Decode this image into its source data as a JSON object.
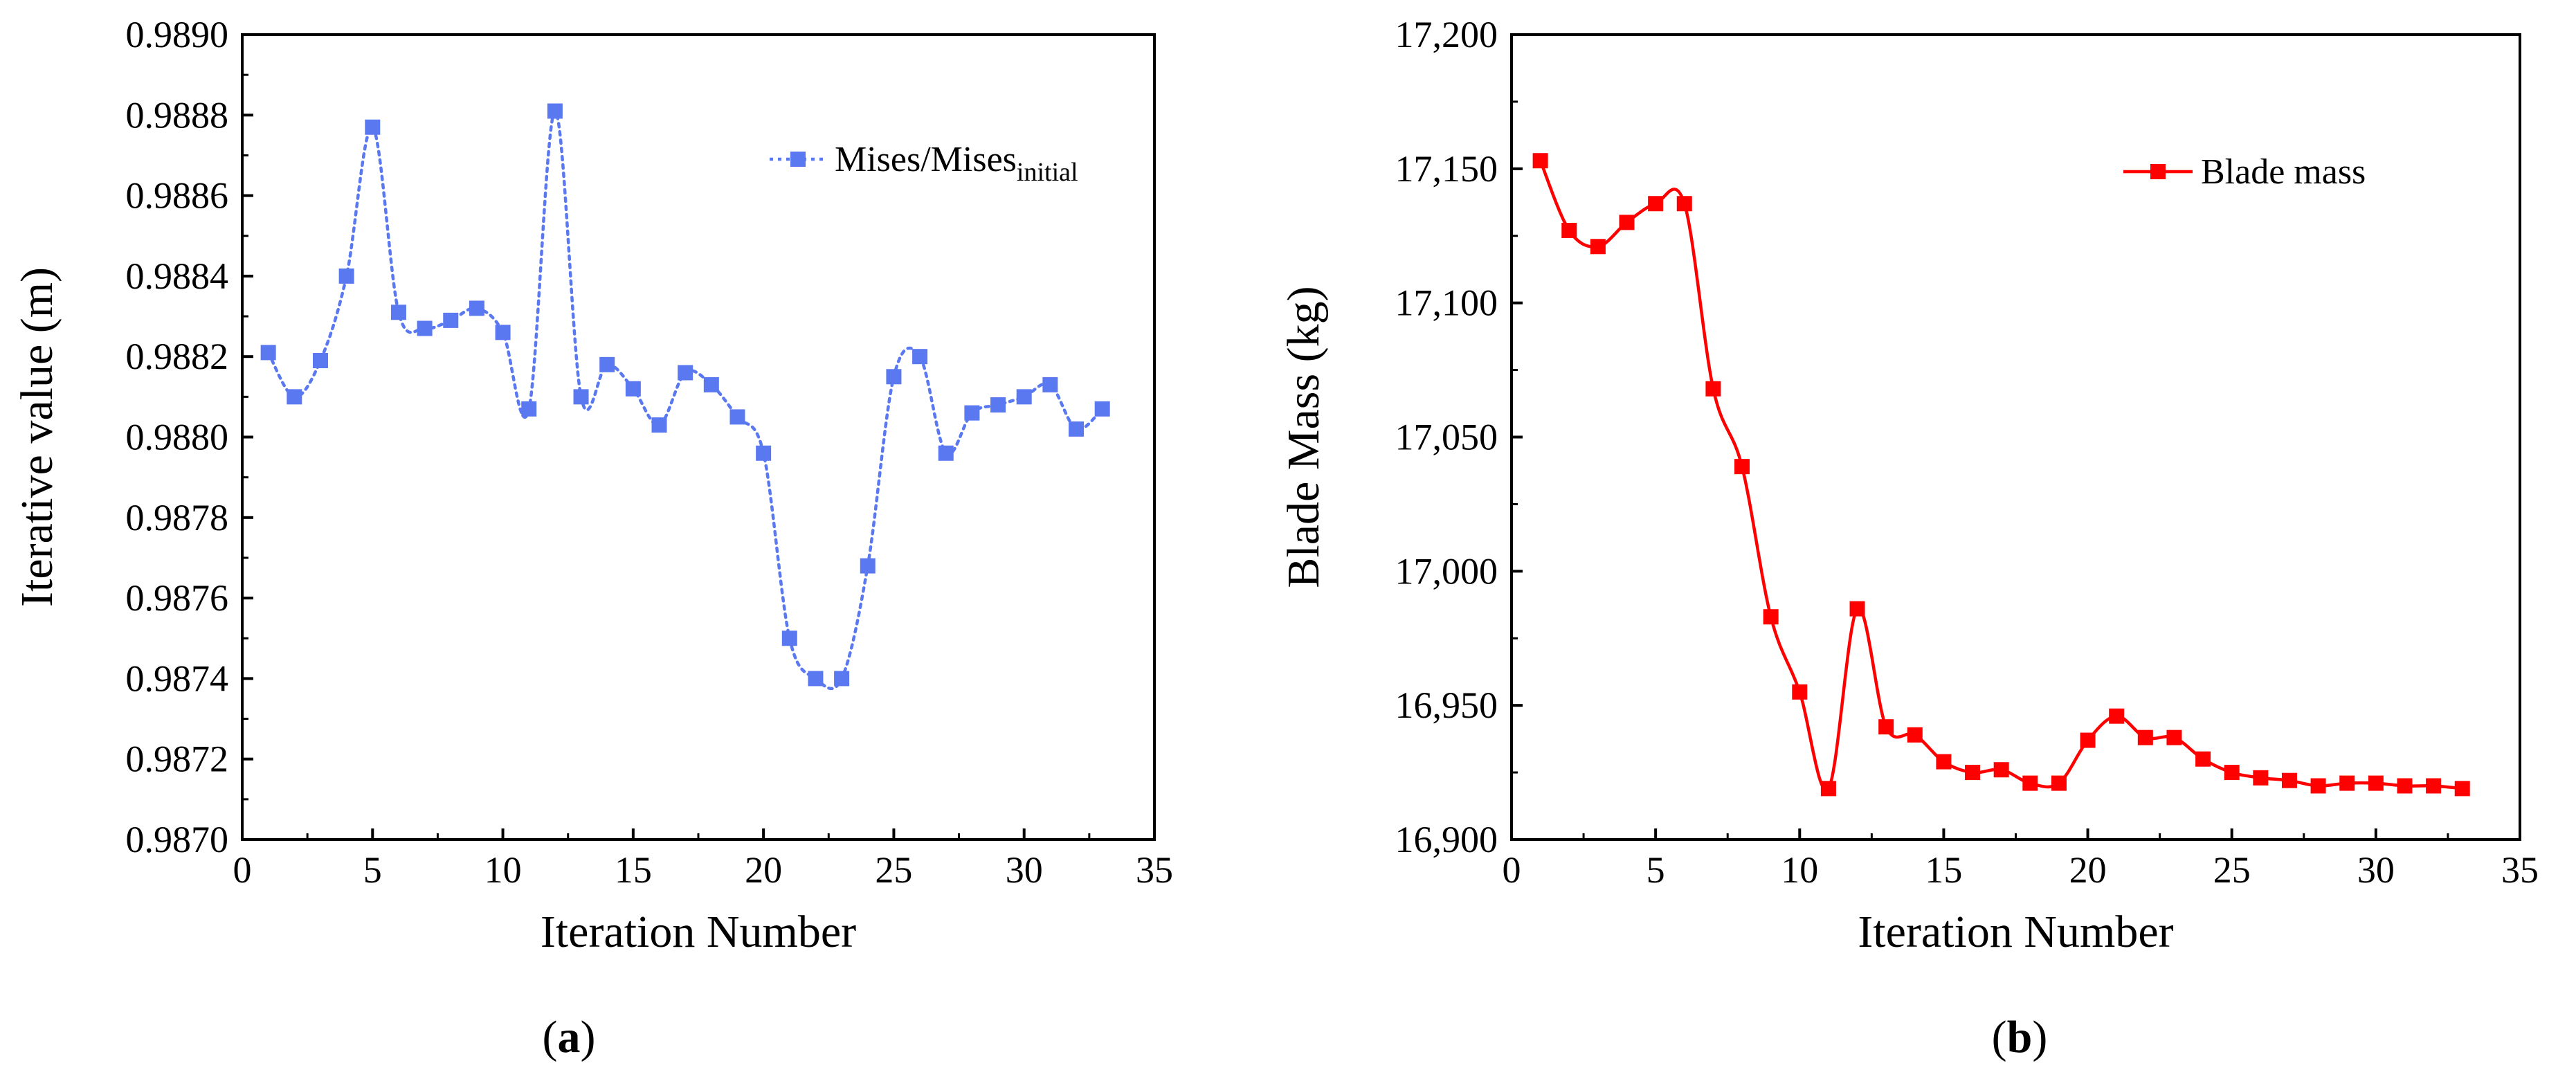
{
  "chart_data": [
    {
      "type": "line",
      "panel_label": {
        "open": "(",
        "letter": "a",
        "close": ")"
      },
      "xlabel": "Iteration Number",
      "ylabel": "Iterative value (m)",
      "xlim": [
        0,
        35
      ],
      "ylim": [
        0.987,
        0.989
      ],
      "xticks": [
        0,
        5,
        10,
        15,
        20,
        25,
        30,
        35
      ],
      "xtick_labels": [
        "0",
        "5",
        "10",
        "15",
        "20",
        "25",
        "30",
        "35"
      ],
      "yticks": [
        0.987,
        0.9872,
        0.9874,
        0.9876,
        0.9878,
        0.988,
        0.9882,
        0.9884,
        0.9886,
        0.9888,
        0.989
      ],
      "ytick_labels": [
        "0.9870",
        "0.9872",
        "0.9874",
        "0.9876",
        "0.9878",
        "0.9880",
        "0.9882",
        "0.9884",
        "0.9886",
        "0.9888",
        "0.9890"
      ],
      "grid": false,
      "legend_position": "top-right",
      "series": [
        {
          "name": "Mises/Mises",
          "name_subscript": "initial",
          "color": "#5a78f0",
          "line_style": "dotted",
          "marker": "square",
          "x": [
            1,
            2,
            3,
            4,
            5,
            6,
            7,
            8,
            9,
            10,
            11,
            12,
            13,
            14,
            15,
            16,
            17,
            18,
            19,
            20,
            21,
            22,
            23,
            24,
            25,
            26,
            27,
            28,
            29,
            30,
            31,
            32,
            33
          ],
          "values": [
            0.98821,
            0.9881,
            0.98819,
            0.9884,
            0.98877,
            0.98831,
            0.98827,
            0.98829,
            0.98832,
            0.98826,
            0.98807,
            0.98881,
            0.9881,
            0.98818,
            0.98812,
            0.98803,
            0.98816,
            0.98813,
            0.98805,
            0.98796,
            0.9875,
            0.9874,
            0.9874,
            0.98768,
            0.98815,
            0.9882,
            0.98796,
            0.98806,
            0.98808,
            0.9881,
            0.98813,
            0.98802,
            0.98807
          ]
        }
      ]
    },
    {
      "type": "line",
      "panel_label": {
        "open": "(",
        "letter": "b",
        "close": ")"
      },
      "xlabel": "Iteration Number",
      "ylabel": "Blade Mass (kg)",
      "xlim": [
        0,
        35
      ],
      "ylim": [
        16900,
        17200
      ],
      "xticks": [
        0,
        5,
        10,
        15,
        20,
        25,
        30,
        35
      ],
      "xtick_labels": [
        "0",
        "5",
        "10",
        "15",
        "20",
        "25",
        "30",
        "35"
      ],
      "yticks": [
        16900,
        16950,
        17000,
        17050,
        17100,
        17150,
        17200
      ],
      "ytick_labels": [
        "16,900",
        "16,950",
        "17,000",
        "17,050",
        "17,100",
        "17,150",
        "17,200"
      ],
      "grid": false,
      "legend_position": "top-right",
      "series": [
        {
          "name": "Blade mass",
          "color": "#ff0000",
          "line_style": "solid",
          "marker": "square",
          "x": [
            1,
            2,
            3,
            4,
            5,
            6,
            7,
            8,
            9,
            10,
            11,
            12,
            13,
            14,
            15,
            16,
            17,
            18,
            19,
            20,
            21,
            22,
            23,
            24,
            25,
            26,
            27,
            28,
            29,
            30,
            31,
            32,
            33
          ],
          "values": [
            17153,
            17127,
            17121,
            17130,
            17137,
            17137,
            17068,
            17039,
            16983,
            16955,
            16919,
            16986,
            16942,
            16939,
            16929,
            16925,
            16926,
            16921,
            16921,
            16937,
            16946,
            16938,
            16938,
            16930,
            16925,
            16923,
            16922,
            16920,
            16921,
            16921,
            16920,
            16920,
            16919
          ]
        }
      ]
    }
  ]
}
